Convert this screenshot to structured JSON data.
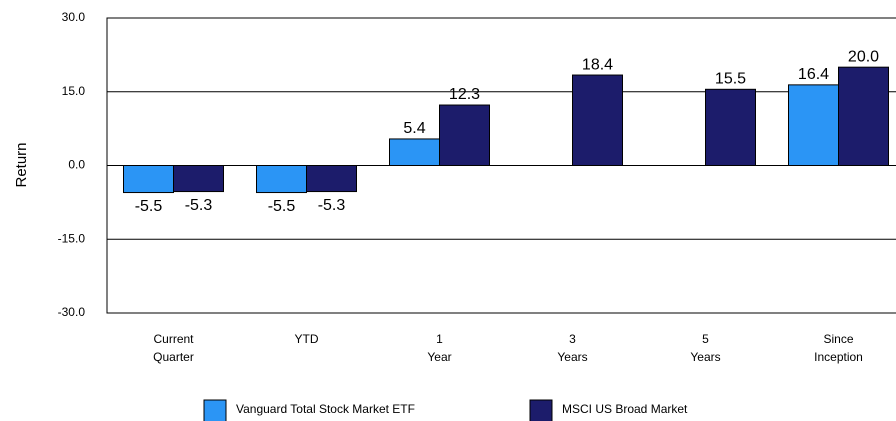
{
  "chart_data": {
    "type": "bar",
    "y_label": "Return",
    "categories": [
      "Current Quarter",
      "YTD",
      "1 Year",
      "3 Years",
      "5 Years",
      "Since Inception"
    ],
    "series": [
      {
        "name": "Vanguard Total Stock Market ETF",
        "color": "#2b95f5",
        "values": [
          -5.5,
          -5.5,
          5.4,
          null,
          null,
          16.4
        ]
      },
      {
        "name": "MSCI US Broad Market",
        "color": "#1c1c6b",
        "values": [
          -5.3,
          -5.3,
          12.3,
          18.4,
          15.5,
          20.0
        ],
        "value_labels": [
          "-5.3",
          "-5.3",
          "12.3",
          "18.4",
          "15.5",
          "20.0"
        ]
      }
    ],
    "ylim": [
      -30,
      30
    ],
    "yticks": [
      {
        "value": -30,
        "label": "-30.0"
      },
      {
        "value": -15,
        "label": "-15.0"
      },
      {
        "value": 0,
        "label": "0.0"
      },
      {
        "value": 15,
        "label": "15.0"
      },
      {
        "value": 30,
        "label": "30.0"
      }
    ],
    "grid": true
  }
}
